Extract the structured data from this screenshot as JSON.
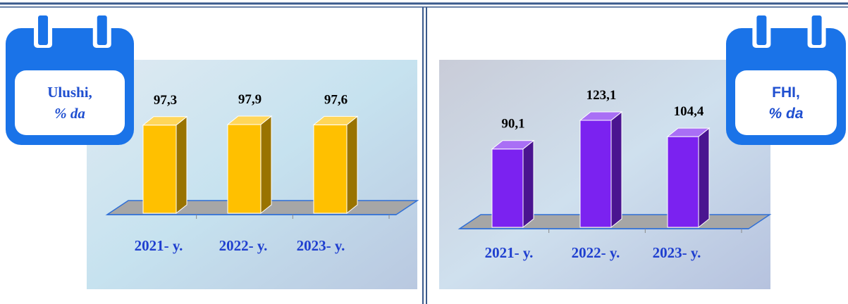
{
  "chart_data": [
    {
      "type": "bar3d",
      "title": "Ulushi,",
      "unit": "% da",
      "categories": [
        "2021- y.",
        "2022- y.",
        "2023- y."
      ],
      "values": [
        97.3,
        97.9,
        97.6
      ],
      "value_labels": [
        "97,3",
        "97,9",
        "97,6"
      ],
      "color": "#ffc000"
    },
    {
      "type": "bar3d",
      "title": "FHI,",
      "unit": "% da",
      "categories": [
        "2021- y.",
        "2022- y.",
        "2023- y."
      ],
      "values": [
        90.1,
        123.1,
        104.4
      ],
      "value_labels": [
        "90,1",
        "123,1",
        "104,4"
      ],
      "color": "#7b22f0"
    }
  ]
}
